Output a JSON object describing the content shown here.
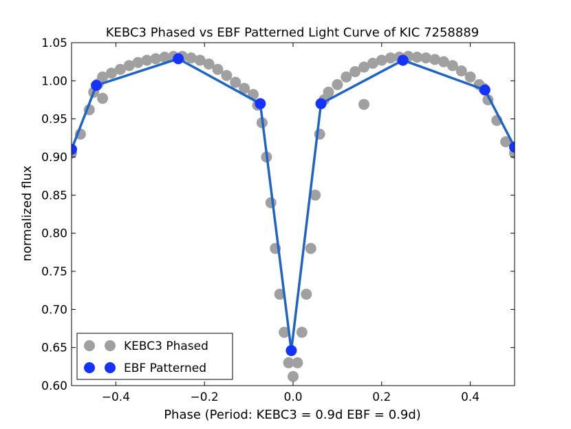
{
  "chart_data": {
    "type": "scatter",
    "title": "KEBC3 Phased vs EBF Patterned Light Curve of KIC 7258889",
    "xlabel": "Phase (Period: KEBC3 = 0.9d EBF = 0.9d)",
    "ylabel": "normalized flux",
    "xlim": [
      -0.5,
      0.5
    ],
    "ylim": [
      0.6,
      1.05
    ],
    "xticks": [
      -0.4,
      -0.2,
      0.0,
      0.2,
      0.4
    ],
    "xtick_labels": [
      "−0.4",
      "−0.2",
      "0.0",
      "0.2",
      "0.4"
    ],
    "yticks": [
      0.6,
      0.65,
      0.7,
      0.75,
      0.8,
      0.85,
      0.9,
      0.95,
      1.0,
      1.05
    ],
    "ytick_labels": [
      "0.60",
      "0.65",
      "0.70",
      "0.75",
      "0.80",
      "0.85",
      "0.90",
      "0.95",
      "1.00",
      "1.05"
    ],
    "grid": false,
    "legend_position": "lower-left",
    "series": [
      {
        "name": "KEBC3 Phased",
        "style": "scatter",
        "color": "#a0a0a0",
        "x": [
          -0.5,
          -0.48,
          -0.46,
          -0.45,
          -0.44,
          -0.43,
          -0.41,
          -0.39,
          -0.37,
          -0.35,
          -0.33,
          -0.31,
          -0.29,
          -0.27,
          -0.25,
          -0.23,
          -0.21,
          -0.19,
          -0.17,
          -0.15,
          -0.13,
          -0.11,
          -0.09,
          -0.08,
          -0.07,
          -0.06,
          -0.05,
          -0.04,
          -0.03,
          -0.02,
          -0.01,
          0.0,
          0.01,
          0.02,
          0.03,
          0.04,
          0.05,
          0.06,
          0.07,
          0.08,
          0.1,
          0.12,
          0.14,
          0.16,
          0.18,
          0.2,
          0.22,
          0.24,
          0.26,
          0.28,
          0.3,
          0.32,
          0.34,
          0.36,
          0.38,
          0.4,
          0.42,
          0.43,
          0.44,
          0.46,
          0.48,
          0.5,
          -0.43,
          0.16
        ],
        "y": [
          0.905,
          0.93,
          0.962,
          0.985,
          0.996,
          1.005,
          1.01,
          1.015,
          1.02,
          1.024,
          1.027,
          1.029,
          1.031,
          1.032,
          1.032,
          1.03,
          1.027,
          1.022,
          1.015,
          1.007,
          0.998,
          0.99,
          0.982,
          0.968,
          0.945,
          0.9,
          0.84,
          0.78,
          0.72,
          0.67,
          0.63,
          0.612,
          0.63,
          0.67,
          0.72,
          0.78,
          0.85,
          0.93,
          0.975,
          0.985,
          0.995,
          1.005,
          1.012,
          1.018,
          1.023,
          1.027,
          1.03,
          1.031,
          1.032,
          1.031,
          1.03,
          1.028,
          1.025,
          1.02,
          1.013,
          1.005,
          0.995,
          0.99,
          0.975,
          0.948,
          0.92,
          0.905,
          0.977,
          0.969
        ]
      },
      {
        "name": "EBF Patterned",
        "style": "line+markers",
        "color": "#1533ff",
        "line_color": "#1e64c8",
        "x": [
          -0.5,
          -0.444,
          -0.259,
          -0.074,
          -0.004,
          0.063,
          0.248,
          0.433,
          0.5
        ],
        "y": [
          0.91,
          0.994,
          1.029,
          0.97,
          0.646,
          0.97,
          1.027,
          0.988,
          0.913
        ]
      }
    ]
  }
}
